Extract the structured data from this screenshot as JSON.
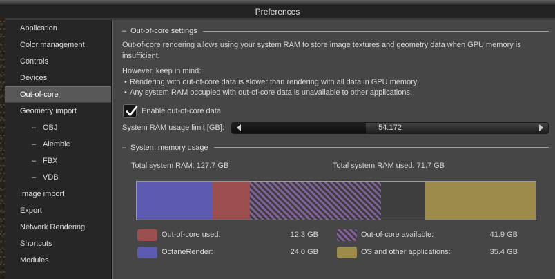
{
  "window": {
    "title": "Preferences"
  },
  "sidebar": {
    "sub_item_prefix": "–",
    "items": [
      {
        "label": "Application",
        "sub": false,
        "selected": false
      },
      {
        "label": "Color management",
        "sub": false,
        "selected": false
      },
      {
        "label": "Controls",
        "sub": false,
        "selected": false
      },
      {
        "label": "Devices",
        "sub": false,
        "selected": false
      },
      {
        "label": "Out-of-core",
        "sub": false,
        "selected": true
      },
      {
        "label": "Geometry import",
        "sub": false,
        "selected": false
      },
      {
        "label": "OBJ",
        "sub": true,
        "selected": false
      },
      {
        "label": "Alembic",
        "sub": true,
        "selected": false
      },
      {
        "label": "FBX",
        "sub": true,
        "selected": false
      },
      {
        "label": "VDB",
        "sub": true,
        "selected": false
      },
      {
        "label": "Image import",
        "sub": false,
        "selected": false
      },
      {
        "label": "Export",
        "sub": false,
        "selected": false
      },
      {
        "label": "Network Rendering",
        "sub": false,
        "selected": false
      },
      {
        "label": "Shortcuts",
        "sub": false,
        "selected": false
      },
      {
        "label": "Modules",
        "sub": false,
        "selected": false
      }
    ]
  },
  "settings": {
    "section_dash": "–",
    "section_title": "Out-of-core settings",
    "intro_lines": [
      "Out-of-core rendering allows using your system RAM to store image textures and geometry data when GPU memory is",
      "insufficient."
    ],
    "note_title": "However, keep in mind:",
    "bullet_char": "•",
    "bullets": [
      "Rendering with out-of-core data is slower than rendering with all data in GPU memory.",
      "Any system RAM occupied with out-of-core data is unavailable to other applications."
    ],
    "enable_checkbox": {
      "label": "Enable out-of-core data",
      "checked": true
    },
    "ram_limit": {
      "label": "System RAM usage limit [GB]:",
      "value": "54.172"
    }
  },
  "memory": {
    "section_dash": "–",
    "section_title": "System memory usage",
    "total_ram_label": "Total system RAM:",
    "total_ram_value": "127.7 GB",
    "total_used_label": "Total system RAM used:",
    "total_used_value": "71.7 GB"
  },
  "chart_data": {
    "type": "stacked-bar",
    "title": "System memory usage",
    "unit": "GB",
    "total_gb": 127.7,
    "used_gb": 71.7,
    "bar_segments": [
      {
        "name": "OctaneRender",
        "gb": 24.0,
        "color": "#5c5ab1",
        "pattern": "solid"
      },
      {
        "name": "Out-of-core used",
        "gb": 12.3,
        "color": "#9d4e4e",
        "pattern": "solid"
      },
      {
        "name": "Out-of-core available",
        "gb": 41.9,
        "color": "#82619a",
        "pattern": "hatch"
      },
      {
        "name": "unused-ram-segment",
        "gb": 14.1,
        "color": "#3e3e3e",
        "pattern": "solid"
      },
      {
        "name": "OS and other applications",
        "gb": 35.4,
        "color": "#9c8b4a",
        "pattern": "solid"
      }
    ],
    "legend": [
      {
        "label": "Out-of-core used:",
        "value": "12.3 GB",
        "color": "#9d4e4e",
        "pattern": "solid"
      },
      {
        "label": "Out-of-core available:",
        "value": "41.9 GB",
        "color": "#82619a",
        "pattern": "hatch"
      },
      {
        "label": "OctaneRender:",
        "value": "24.0 GB",
        "color": "#5c5ab1",
        "pattern": "solid"
      },
      {
        "label": "OS and other applications:",
        "value": "35.4 GB",
        "color": "#9c8b4a",
        "pattern": "solid"
      }
    ],
    "legend_position": "below",
    "axis": "none"
  }
}
